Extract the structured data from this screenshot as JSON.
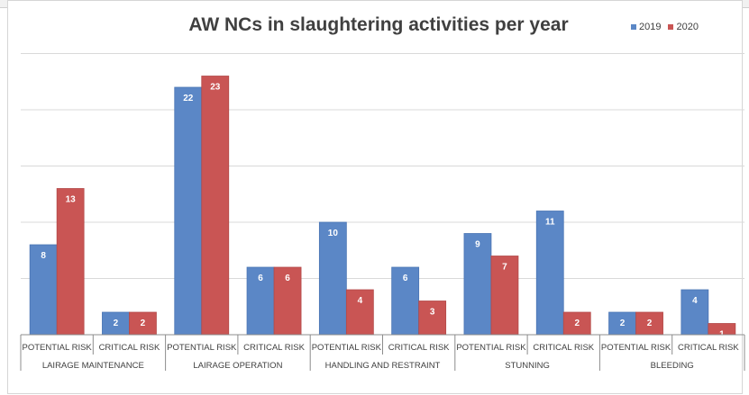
{
  "chart_data": {
    "type": "bar",
    "title": "AW NCs in slaughtering activities per year",
    "groups": [
      "LAIRAGE MAINTENANCE",
      "LAIRAGE OPERATION",
      "HANDLING AND RESTRAINT",
      "STUNNING",
      "BLEEDING"
    ],
    "categories": [
      "POTENTIAL RISK",
      "CRITICAL RISK",
      "POTENTIAL RISK",
      "CRITICAL RISK",
      "POTENTIAL RISK",
      "CRITICAL RISK",
      "POTENTIAL RISK",
      "CRITICAL RISK",
      "POTENTIAL RISK",
      "CRITICAL RISK"
    ],
    "series": [
      {
        "name": "2019",
        "color": "#5b87c6",
        "values": [
          8,
          2,
          22,
          6,
          10,
          6,
          9,
          11,
          2,
          4
        ]
      },
      {
        "name": "2020",
        "color": "#c95554",
        "values": [
          13,
          2,
          23,
          6,
          4,
          3,
          7,
          2,
          2,
          1
        ]
      }
    ],
    "ylim": [
      0,
      25
    ],
    "grid": true,
    "legend_position": "top-right",
    "data_labels": true
  }
}
